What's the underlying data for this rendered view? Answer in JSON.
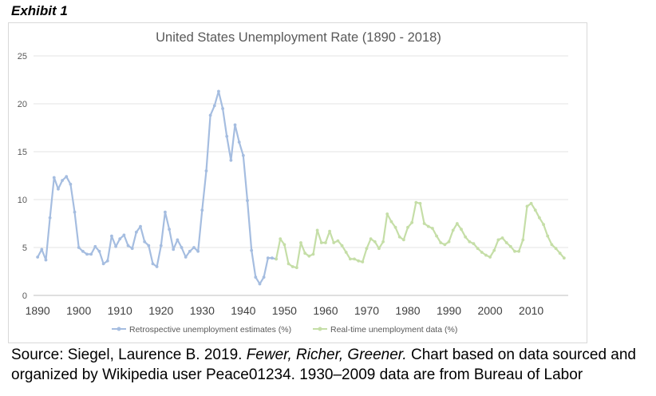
{
  "exhibit_label": "Exhibit 1",
  "source": {
    "prefix": "Source: Siegel, Laurence B. 2019. ",
    "book": "Fewer, Richer, Greener.",
    "rest": " Chart based on data sourced and organized by Wikipedia user Peace01234. 1930–2009 data are from Bureau of Labor"
  },
  "chart_data": {
    "type": "line",
    "title": "United States Unemployment Rate (1890 - 2018)",
    "xlabel": "",
    "ylabel": "",
    "xlim": [
      1889,
      2019
    ],
    "ylim": [
      0,
      25
    ],
    "x_ticks": [
      1890,
      1900,
      1910,
      1920,
      1930,
      1940,
      1950,
      1960,
      1970,
      1980,
      1990,
      2000,
      2010
    ],
    "y_ticks": [
      0,
      5,
      10,
      15,
      20,
      25
    ],
    "grid": "horizontal",
    "legend_position": "bottom",
    "series": [
      {
        "name": "Retrospective unemployment estimates (%)",
        "color": "#a5bde0",
        "x": [
          1890,
          1891,
          1892,
          1893,
          1894,
          1895,
          1896,
          1897,
          1898,
          1899,
          1900,
          1901,
          1902,
          1903,
          1904,
          1905,
          1906,
          1907,
          1908,
          1909,
          1910,
          1911,
          1912,
          1913,
          1914,
          1915,
          1916,
          1917,
          1918,
          1919,
          1920,
          1921,
          1922,
          1923,
          1924,
          1925,
          1926,
          1927,
          1928,
          1929,
          1930,
          1931,
          1932,
          1933,
          1934,
          1935,
          1936,
          1937,
          1938,
          1939,
          1940,
          1941,
          1942,
          1943,
          1944,
          1945,
          1946,
          1947,
          1948
        ],
        "values": [
          4.0,
          4.8,
          3.7,
          8.1,
          12.3,
          11.1,
          12.0,
          12.4,
          11.6,
          8.7,
          5.0,
          4.6,
          4.3,
          4.3,
          5.1,
          4.6,
          3.3,
          3.6,
          6.2,
          5.1,
          5.9,
          6.3,
          5.2,
          4.9,
          6.6,
          7.2,
          5.6,
          5.2,
          3.3,
          3.0,
          5.2,
          8.7,
          6.9,
          4.8,
          5.8,
          5.0,
          4.0,
          4.6,
          5.0,
          4.6,
          8.9,
          13.0,
          18.8,
          19.8,
          21.3,
          19.5,
          16.6,
          14.1,
          17.8,
          16.0,
          14.6,
          9.9,
          4.7,
          1.9,
          1.2,
          1.9,
          3.9,
          3.9,
          3.8
        ]
      },
      {
        "name": "Real-time unemployment data (%)",
        "color": "#c5dea7",
        "x": [
          1948,
          1949,
          1950,
          1951,
          1952,
          1953,
          1954,
          1955,
          1956,
          1957,
          1958,
          1959,
          1960,
          1961,
          1962,
          1963,
          1964,
          1965,
          1966,
          1967,
          1968,
          1969,
          1970,
          1971,
          1972,
          1973,
          1974,
          1975,
          1976,
          1977,
          1978,
          1979,
          1980,
          1981,
          1982,
          1983,
          1984,
          1985,
          1986,
          1987,
          1988,
          1989,
          1990,
          1991,
          1992,
          1993,
          1994,
          1995,
          1996,
          1997,
          1998,
          1999,
          2000,
          2001,
          2002,
          2003,
          2004,
          2005,
          2006,
          2007,
          2008,
          2009,
          2010,
          2011,
          2012,
          2013,
          2014,
          2015,
          2016,
          2017,
          2018
        ],
        "values": [
          3.8,
          5.9,
          5.3,
          3.3,
          3.0,
          2.9,
          5.5,
          4.4,
          4.1,
          4.3,
          6.8,
          5.5,
          5.5,
          6.7,
          5.5,
          5.7,
          5.2,
          4.5,
          3.8,
          3.8,
          3.6,
          3.5,
          4.9,
          5.9,
          5.6,
          4.9,
          5.6,
          8.5,
          7.7,
          7.1,
          6.1,
          5.8,
          7.1,
          7.6,
          9.7,
          9.6,
          7.5,
          7.2,
          7.0,
          6.2,
          5.5,
          5.3,
          5.6,
          6.8,
          7.5,
          6.9,
          6.1,
          5.6,
          5.4,
          4.9,
          4.5,
          4.2,
          4.0,
          4.7,
          5.8,
          6.0,
          5.5,
          5.1,
          4.6,
          4.6,
          5.8,
          9.3,
          9.6,
          8.9,
          8.1,
          7.4,
          6.2,
          5.3,
          4.9,
          4.4,
          3.9
        ]
      }
    ]
  }
}
